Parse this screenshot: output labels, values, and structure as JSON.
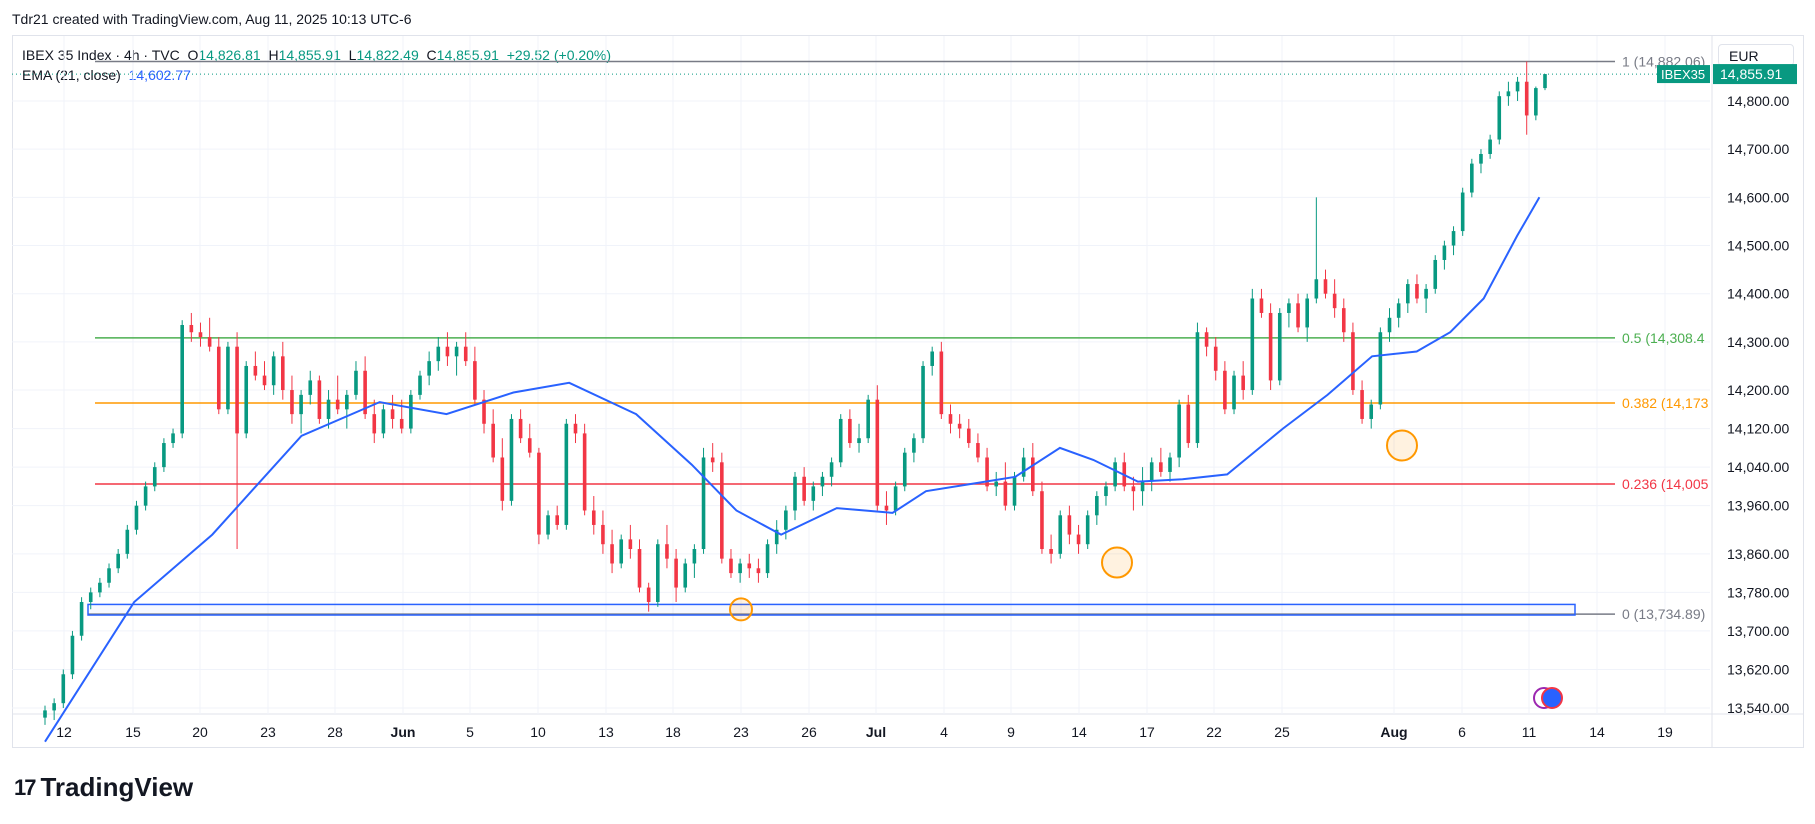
{
  "header": {
    "attribution": "Tdr21 created with TradingView.com, Aug 11, 2025 10:13 UTC-6"
  },
  "legend": {
    "symbol": "IBEX 35 Index · 4h · TVC",
    "o_label": "O",
    "o": "14,826.81",
    "h_label": "H",
    "h": "14,855.91",
    "l_label": "L",
    "l": "14,822.49",
    "c_label": "C",
    "c": "14,855.91",
    "change": "+29.52 (+0.20%)",
    "ema_label": "EMA (21, close)",
    "ema": "14,602.77"
  },
  "currency": "EUR",
  "brand": {
    "logo": "17",
    "name": "TradingView"
  },
  "colors": {
    "up": "#089981",
    "down": "#f23645",
    "ema": "#2962ff",
    "fib1": "#787b86",
    "fib05": "#4caf50",
    "fib0382": "#ff9800",
    "fib0236": "#f23645",
    "box": "#2962ff",
    "marker": "#ff9800"
  },
  "chart_data": {
    "type": "candlestick",
    "symbol": "IBEX 35",
    "timeframe": "4h",
    "ylim": [
      13520,
      14900
    ],
    "y_ticks": [
      "14,800.00",
      "14,700.00",
      "14,600.00",
      "14,500.00",
      "14,400.00",
      "14,300.00",
      "14,200.00",
      "14,120.00",
      "14,040.00",
      "13,960.00",
      "13,860.00",
      "13,780.00",
      "13,700.00",
      "13,620.00",
      "13,540.00"
    ],
    "x_ticks": [
      "12",
      "15",
      "20",
      "23",
      "28",
      "Jun",
      "5",
      "10",
      "13",
      "18",
      "23",
      "26",
      "Jul",
      "4",
      "9",
      "14",
      "17",
      "22",
      "25",
      "Aug",
      "6",
      "11",
      "14",
      "19"
    ],
    "price_tag": {
      "label": "IBEX35",
      "value": "14,855.91"
    },
    "ema_points": [
      [
        0,
        13470
      ],
      [
        80,
        13760
      ],
      [
        150,
        13900
      ],
      [
        230,
        14105
      ],
      [
        300,
        14175
      ],
      [
        360,
        14150
      ],
      [
        420,
        14195
      ],
      [
        470,
        14215
      ],
      [
        530,
        14150
      ],
      [
        580,
        14045
      ],
      [
        620,
        13950
      ],
      [
        660,
        13900
      ],
      [
        710,
        13955
      ],
      [
        760,
        13945
      ],
      [
        790,
        13990
      ],
      [
        830,
        14005
      ],
      [
        870,
        14020
      ],
      [
        910,
        14080
      ],
      [
        940,
        14055
      ],
      [
        980,
        14010
      ],
      [
        1020,
        14015
      ],
      [
        1060,
        14025
      ],
      [
        1110,
        14120
      ],
      [
        1150,
        14190
      ],
      [
        1190,
        14270
      ],
      [
        1230,
        14280
      ],
      [
        1260,
        14320
      ],
      [
        1290,
        14390
      ],
      [
        1320,
        14520
      ],
      [
        1340,
        14600
      ]
    ],
    "fibonacci": [
      {
        "label": "1 (14,882.06)",
        "value": 14882.06
      },
      {
        "label": "0.5 (14,308.4",
        "value": 14308.4
      },
      {
        "label": "0.382 (14,173",
        "value": 14173
      },
      {
        "label": "0.236 (14,005",
        "value": 14005
      },
      {
        "label": "0 (13,734.89)",
        "value": 13734.89
      }
    ],
    "support_box": {
      "top": 13755,
      "bottom": 13733
    },
    "circled_lows": [
      13755,
      13842,
      14085
    ],
    "candles": [
      {
        "o": 13520,
        "h": 13545,
        "l": 13505,
        "c": 13535
      },
      {
        "o": 13535,
        "h": 13560,
        "l": 13515,
        "c": 13550
      },
      {
        "o": 13550,
        "h": 13620,
        "l": 13540,
        "c": 13610
      },
      {
        "o": 13610,
        "h": 13700,
        "l": 13600,
        "c": 13690
      },
      {
        "o": 13690,
        "h": 13770,
        "l": 13680,
        "c": 13760
      },
      {
        "o": 13760,
        "h": 13790,
        "l": 13745,
        "c": 13780
      },
      {
        "o": 13780,
        "h": 13810,
        "l": 13770,
        "c": 13800
      },
      {
        "o": 13800,
        "h": 13840,
        "l": 13790,
        "c": 13830
      },
      {
        "o": 13830,
        "h": 13870,
        "l": 13820,
        "c": 13860
      },
      {
        "o": 13860,
        "h": 13920,
        "l": 13850,
        "c": 13910
      },
      {
        "o": 13910,
        "h": 13970,
        "l": 13900,
        "c": 13960
      },
      {
        "o": 13960,
        "h": 14010,
        "l": 13950,
        "c": 14000
      },
      {
        "o": 14000,
        "h": 14050,
        "l": 13990,
        "c": 14040
      },
      {
        "o": 14040,
        "h": 14100,
        "l": 14030,
        "c": 14090
      },
      {
        "o": 14090,
        "h": 14120,
        "l": 14080,
        "c": 14110
      },
      {
        "o": 14110,
        "h": 14345,
        "l": 14100,
        "c": 14335
      },
      {
        "o": 14335,
        "h": 14360,
        "l": 14300,
        "c": 14320
      },
      {
        "o": 14320,
        "h": 14340,
        "l": 14290,
        "c": 14310
      },
      {
        "o": 14310,
        "h": 14350,
        "l": 14280,
        "c": 14290
      },
      {
        "o": 14290,
        "h": 14310,
        "l": 14150,
        "c": 14160
      },
      {
        "o": 14160,
        "h": 14300,
        "l": 14150,
        "c": 14290
      },
      {
        "o": 14290,
        "h": 14320,
        "l": 13870,
        "c": 14110
      },
      {
        "o": 14110,
        "h": 14260,
        "l": 14100,
        "c": 14250
      },
      {
        "o": 14250,
        "h": 14280,
        "l": 14220,
        "c": 14230
      },
      {
        "o": 14230,
        "h": 14260,
        "l": 14200,
        "c": 14210
      },
      {
        "o": 14210,
        "h": 14280,
        "l": 14190,
        "c": 14270
      },
      {
        "o": 14270,
        "h": 14300,
        "l": 14180,
        "c": 14200
      },
      {
        "o": 14200,
        "h": 14230,
        "l": 14130,
        "c": 14150
      },
      {
        "o": 14150,
        "h": 14200,
        "l": 14110,
        "c": 14190
      },
      {
        "o": 14190,
        "h": 14240,
        "l": 14170,
        "c": 14220
      },
      {
        "o": 14220,
        "h": 14230,
        "l": 14130,
        "c": 14140
      },
      {
        "o": 14140,
        "h": 14200,
        "l": 14120,
        "c": 14180
      },
      {
        "o": 14180,
        "h": 14230,
        "l": 14150,
        "c": 14160
      },
      {
        "o": 14160,
        "h": 14200,
        "l": 14120,
        "c": 14190
      },
      {
        "o": 14190,
        "h": 14260,
        "l": 14180,
        "c": 14240
      },
      {
        "o": 14240,
        "h": 14270,
        "l": 14140,
        "c": 14150
      },
      {
        "o": 14150,
        "h": 14180,
        "l": 14090,
        "c": 14110
      },
      {
        "o": 14110,
        "h": 14170,
        "l": 14100,
        "c": 14160
      },
      {
        "o": 14160,
        "h": 14190,
        "l": 14120,
        "c": 14140
      },
      {
        "o": 14140,
        "h": 14180,
        "l": 14110,
        "c": 14120
      },
      {
        "o": 14120,
        "h": 14200,
        "l": 14110,
        "c": 14190
      },
      {
        "o": 14190,
        "h": 14240,
        "l": 14180,
        "c": 14230
      },
      {
        "o": 14230,
        "h": 14280,
        "l": 14210,
        "c": 14260
      },
      {
        "o": 14260,
        "h": 14310,
        "l": 14240,
        "c": 14290
      },
      {
        "o": 14290,
        "h": 14320,
        "l": 14250,
        "c": 14270
      },
      {
        "o": 14270,
        "h": 14300,
        "l": 14230,
        "c": 14290
      },
      {
        "o": 14290,
        "h": 14320,
        "l": 14250,
        "c": 14260
      },
      {
        "o": 14260,
        "h": 14290,
        "l": 14170,
        "c": 14180
      },
      {
        "o": 14180,
        "h": 14200,
        "l": 14110,
        "c": 14130
      },
      {
        "o": 14130,
        "h": 14160,
        "l": 14050,
        "c": 14060
      },
      {
        "o": 14060,
        "h": 14100,
        "l": 13950,
        "c": 13970
      },
      {
        "o": 13970,
        "h": 14150,
        "l": 13960,
        "c": 14140
      },
      {
        "o": 14140,
        "h": 14160,
        "l": 14090,
        "c": 14100
      },
      {
        "o": 14100,
        "h": 14130,
        "l": 14060,
        "c": 14070
      },
      {
        "o": 14070,
        "h": 14080,
        "l": 13880,
        "c": 13900
      },
      {
        "o": 13900,
        "h": 13950,
        "l": 13890,
        "c": 13940
      },
      {
        "o": 13940,
        "h": 13960,
        "l": 13910,
        "c": 13920
      },
      {
        "o": 13920,
        "h": 14140,
        "l": 13910,
        "c": 14130
      },
      {
        "o": 14130,
        "h": 14150,
        "l": 14090,
        "c": 14110
      },
      {
        "o": 14110,
        "h": 14130,
        "l": 13940,
        "c": 13950
      },
      {
        "o": 13950,
        "h": 13980,
        "l": 13900,
        "c": 13920
      },
      {
        "o": 13920,
        "h": 13950,
        "l": 13860,
        "c": 13880
      },
      {
        "o": 13880,
        "h": 13910,
        "l": 13820,
        "c": 13840
      },
      {
        "o": 13840,
        "h": 13900,
        "l": 13830,
        "c": 13890
      },
      {
        "o": 13890,
        "h": 13920,
        "l": 13850,
        "c": 13870
      },
      {
        "o": 13870,
        "h": 13890,
        "l": 13780,
        "c": 13790
      },
      {
        "o": 13790,
        "h": 13800,
        "l": 13740,
        "c": 13760
      },
      {
        "o": 13760,
        "h": 13890,
        "l": 13750,
        "c": 13880
      },
      {
        "o": 13880,
        "h": 13920,
        "l": 13830,
        "c": 13850
      },
      {
        "o": 13850,
        "h": 13870,
        "l": 13760,
        "c": 13790
      },
      {
        "o": 13790,
        "h": 13850,
        "l": 13780,
        "c": 13840
      },
      {
        "o": 13840,
        "h": 13880,
        "l": 13810,
        "c": 13870
      },
      {
        "o": 13870,
        "h": 14080,
        "l": 13860,
        "c": 14060
      },
      {
        "o": 14060,
        "h": 14090,
        "l": 14030,
        "c": 14050
      },
      {
        "o": 14050,
        "h": 14070,
        "l": 13840,
        "c": 13850
      },
      {
        "o": 13850,
        "h": 13870,
        "l": 13810,
        "c": 13820
      },
      {
        "o": 13820,
        "h": 13850,
        "l": 13800,
        "c": 13840
      },
      {
        "o": 13840,
        "h": 13860,
        "l": 13810,
        "c": 13830
      },
      {
        "o": 13830,
        "h": 13850,
        "l": 13800,
        "c": 13820
      },
      {
        "o": 13820,
        "h": 13890,
        "l": 13810,
        "c": 13880
      },
      {
        "o": 13880,
        "h": 13930,
        "l": 13860,
        "c": 13910
      },
      {
        "o": 13910,
        "h": 13960,
        "l": 13890,
        "c": 13950
      },
      {
        "o": 13950,
        "h": 14030,
        "l": 13930,
        "c": 14020
      },
      {
        "o": 14020,
        "h": 14040,
        "l": 13960,
        "c": 13970
      },
      {
        "o": 13970,
        "h": 14010,
        "l": 13950,
        "c": 14000
      },
      {
        "o": 14000,
        "h": 14030,
        "l": 13980,
        "c": 14020
      },
      {
        "o": 14020,
        "h": 14060,
        "l": 14000,
        "c": 14050
      },
      {
        "o": 14050,
        "h": 14150,
        "l": 14040,
        "c": 14140
      },
      {
        "o": 14140,
        "h": 14160,
        "l": 14080,
        "c": 14090
      },
      {
        "o": 14090,
        "h": 14130,
        "l": 14070,
        "c": 14100
      },
      {
        "o": 14100,
        "h": 14190,
        "l": 14090,
        "c": 14180
      },
      {
        "o": 14180,
        "h": 14210,
        "l": 13950,
        "c": 13960
      },
      {
        "o": 13960,
        "h": 13990,
        "l": 13920,
        "c": 13950
      },
      {
        "o": 13950,
        "h": 14010,
        "l": 13940,
        "c": 14000
      },
      {
        "o": 14000,
        "h": 14080,
        "l": 13990,
        "c": 14070
      },
      {
        "o": 14070,
        "h": 14110,
        "l": 14050,
        "c": 14100
      },
      {
        "o": 14100,
        "h": 14260,
        "l": 14090,
        "c": 14250
      },
      {
        "o": 14250,
        "h": 14290,
        "l": 14230,
        "c": 14280
      },
      {
        "o": 14280,
        "h": 14300,
        "l": 14140,
        "c": 14150
      },
      {
        "o": 14150,
        "h": 14170,
        "l": 14110,
        "c": 14130
      },
      {
        "o": 14130,
        "h": 14150,
        "l": 14100,
        "c": 14120
      },
      {
        "o": 14120,
        "h": 14140,
        "l": 14080,
        "c": 14090
      },
      {
        "o": 14090,
        "h": 14110,
        "l": 14050,
        "c": 14060
      },
      {
        "o": 14060,
        "h": 14080,
        "l": 13990,
        "c": 14000
      },
      {
        "o": 14000,
        "h": 14030,
        "l": 13980,
        "c": 14010
      },
      {
        "o": 14010,
        "h": 14050,
        "l": 13950,
        "c": 13960
      },
      {
        "o": 13960,
        "h": 14030,
        "l": 13950,
        "c": 14020
      },
      {
        "o": 14020,
        "h": 14080,
        "l": 14010,
        "c": 14060
      },
      {
        "o": 14060,
        "h": 14090,
        "l": 13980,
        "c": 13990
      },
      {
        "o": 13990,
        "h": 14010,
        "l": 13860,
        "c": 13870
      },
      {
        "o": 13870,
        "h": 13900,
        "l": 13840,
        "c": 13860
      },
      {
        "o": 13860,
        "h": 13950,
        "l": 13850,
        "c": 13940
      },
      {
        "o": 13940,
        "h": 13960,
        "l": 13880,
        "c": 13900
      },
      {
        "o": 13900,
        "h": 13920,
        "l": 13860,
        "c": 13880
      },
      {
        "o": 13880,
        "h": 13950,
        "l": 13870,
        "c": 13940
      },
      {
        "o": 13940,
        "h": 13990,
        "l": 13920,
        "c": 13980
      },
      {
        "o": 13980,
        "h": 14010,
        "l": 13960,
        "c": 14000
      },
      {
        "o": 14000,
        "h": 14060,
        "l": 13990,
        "c": 14050
      },
      {
        "o": 14050,
        "h": 14070,
        "l": 13990,
        "c": 14000
      },
      {
        "o": 14000,
        "h": 14020,
        "l": 13950,
        "c": 13990
      },
      {
        "o": 13990,
        "h": 14040,
        "l": 13960,
        "c": 14010
      },
      {
        "o": 14010,
        "h": 14060,
        "l": 13990,
        "c": 14050
      },
      {
        "o": 14050,
        "h": 14080,
        "l": 14020,
        "c": 14030
      },
      {
        "o": 14030,
        "h": 14070,
        "l": 14010,
        "c": 14060
      },
      {
        "o": 14060,
        "h": 14180,
        "l": 14040,
        "c": 14170
      },
      {
        "o": 14170,
        "h": 14190,
        "l": 14080,
        "c": 14090
      },
      {
        "o": 14090,
        "h": 14340,
        "l": 14080,
        "c": 14320
      },
      {
        "o": 14320,
        "h": 14330,
        "l": 14270,
        "c": 14290
      },
      {
        "o": 14290,
        "h": 14310,
        "l": 14220,
        "c": 14240
      },
      {
        "o": 14240,
        "h": 14260,
        "l": 14150,
        "c": 14160
      },
      {
        "o": 14160,
        "h": 14240,
        "l": 14150,
        "c": 14230
      },
      {
        "o": 14230,
        "h": 14260,
        "l": 14180,
        "c": 14200
      },
      {
        "o": 14200,
        "h": 14410,
        "l": 14190,
        "c": 14390
      },
      {
        "o": 14390,
        "h": 14410,
        "l": 14350,
        "c": 14360
      },
      {
        "o": 14360,
        "h": 14380,
        "l": 14200,
        "c": 14220
      },
      {
        "o": 14220,
        "h": 14370,
        "l": 14210,
        "c": 14360
      },
      {
        "o": 14360,
        "h": 14390,
        "l": 14330,
        "c": 14380
      },
      {
        "o": 14380,
        "h": 14400,
        "l": 14320,
        "c": 14330
      },
      {
        "o": 14330,
        "h": 14400,
        "l": 14300,
        "c": 14390
      },
      {
        "o": 14390,
        "h": 14600,
        "l": 14380,
        "c": 14430
      },
      {
        "o": 14430,
        "h": 14450,
        "l": 14390,
        "c": 14400
      },
      {
        "o": 14400,
        "h": 14430,
        "l": 14350,
        "c": 14370
      },
      {
        "o": 14370,
        "h": 14390,
        "l": 14300,
        "c": 14320
      },
      {
        "o": 14320,
        "h": 14340,
        "l": 14190,
        "c": 14200
      },
      {
        "o": 14200,
        "h": 14220,
        "l": 14130,
        "c": 14140
      },
      {
        "o": 14140,
        "h": 14180,
        "l": 14120,
        "c": 14170
      },
      {
        "o": 14170,
        "h": 14330,
        "l": 14160,
        "c": 14320
      },
      {
        "o": 14320,
        "h": 14370,
        "l": 14300,
        "c": 14350
      },
      {
        "o": 14350,
        "h": 14390,
        "l": 14330,
        "c": 14380
      },
      {
        "o": 14380,
        "h": 14430,
        "l": 14360,
        "c": 14420
      },
      {
        "o": 14420,
        "h": 14440,
        "l": 14380,
        "c": 14390
      },
      {
        "o": 14390,
        "h": 14420,
        "l": 14360,
        "c": 14410
      },
      {
        "o": 14410,
        "h": 14480,
        "l": 14400,
        "c": 14470
      },
      {
        "o": 14470,
        "h": 14510,
        "l": 14450,
        "c": 14500
      },
      {
        "o": 14500,
        "h": 14540,
        "l": 14480,
        "c": 14530
      },
      {
        "o": 14530,
        "h": 14620,
        "l": 14520,
        "c": 14610
      },
      {
        "o": 14610,
        "h": 14680,
        "l": 14600,
        "c": 14670
      },
      {
        "o": 14670,
        "h": 14700,
        "l": 14650,
        "c": 14690
      },
      {
        "o": 14690,
        "h": 14730,
        "l": 14680,
        "c": 14720
      },
      {
        "o": 14720,
        "h": 14820,
        "l": 14710,
        "c": 14810
      },
      {
        "o": 14810,
        "h": 14840,
        "l": 14790,
        "c": 14820
      },
      {
        "o": 14820,
        "h": 14850,
        "l": 14800,
        "c": 14840
      },
      {
        "o": 14840,
        "h": 14882,
        "l": 14730,
        "c": 14770
      },
      {
        "o": 14770,
        "h": 14830,
        "l": 14760,
        "c": 14826.81
      },
      {
        "o": 14826.81,
        "h": 14855.91,
        "l": 14822.49,
        "c": 14855.91
      }
    ]
  }
}
